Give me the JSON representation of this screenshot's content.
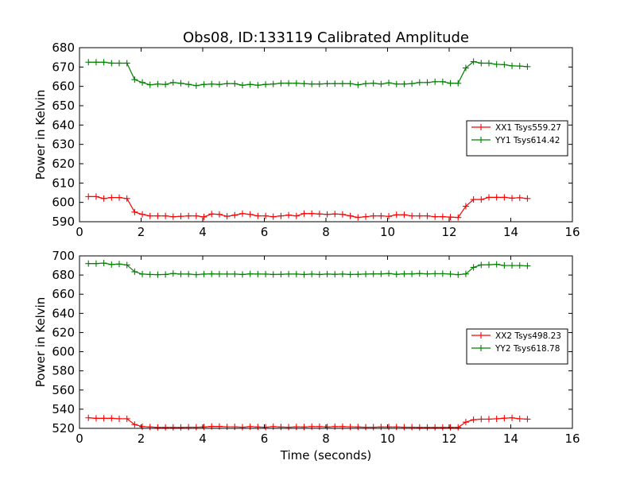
{
  "figure": {
    "title": "Obs08, ID:133119 Calibrated Amplitude",
    "xlabel": "Time (seconds)"
  },
  "chart_data": [
    {
      "type": "line",
      "title": "Obs08, ID:133119 Calibrated Amplitude",
      "xlabel": "",
      "ylabel": "Power in Kelvin",
      "xlim": [
        0,
        16
      ],
      "ylim": [
        590,
        680
      ],
      "xticks": [
        0,
        2,
        4,
        6,
        8,
        10,
        12,
        14,
        16
      ],
      "yticks": [
        590,
        600,
        610,
        620,
        630,
        640,
        650,
        660,
        670,
        680
      ],
      "grid": false,
      "legend_position": "center-right",
      "x": [
        0.29,
        0.54,
        0.79,
        1.04,
        1.29,
        1.54,
        1.79,
        2.04,
        2.29,
        2.54,
        2.79,
        3.04,
        3.29,
        3.54,
        3.79,
        4.04,
        4.29,
        4.54,
        4.79,
        5.04,
        5.29,
        5.54,
        5.79,
        6.04,
        6.29,
        6.54,
        6.79,
        7.04,
        7.29,
        7.54,
        7.79,
        8.04,
        8.29,
        8.54,
        8.79,
        9.04,
        9.29,
        9.54,
        9.79,
        10.04,
        10.29,
        10.54,
        10.79,
        11.04,
        11.29,
        11.54,
        11.79,
        12.04,
        12.29,
        12.54,
        12.79,
        13.04,
        13.29,
        13.54,
        13.79,
        14.04,
        14.29,
        14.54
      ],
      "series": [
        {
          "name": "XX1 Tsys559.27",
          "color": "#ff0000",
          "values": [
            603.0,
            603.0,
            602.0,
            602.5,
            602.5,
            602.0,
            595.0,
            593.8,
            593.0,
            593.0,
            593.0,
            592.6,
            592.8,
            593.0,
            593.0,
            592.5,
            594.0,
            593.8,
            592.8,
            593.4,
            594.2,
            593.8,
            593.0,
            593.0,
            592.6,
            593.0,
            593.4,
            593.0,
            594.2,
            594.2,
            594.0,
            593.8,
            594.0,
            593.8,
            593.0,
            592.2,
            592.6,
            593.0,
            593.0,
            592.8,
            593.6,
            593.6,
            593.0,
            593.0,
            593.0,
            592.6,
            592.6,
            592.4,
            592.2,
            598.0,
            601.5,
            601.5,
            602.6,
            602.6,
            602.6,
            602.2,
            602.4,
            602.0
          ]
        },
        {
          "name": "YY1 Tsys614.42",
          "color": "#008000",
          "values": [
            672.5,
            672.5,
            672.5,
            672.0,
            672.0,
            672.0,
            663.5,
            662.0,
            660.8,
            661.2,
            661.0,
            662.0,
            661.6,
            661.0,
            660.4,
            661.0,
            661.2,
            661.0,
            661.4,
            661.4,
            660.6,
            661.0,
            660.6,
            661.0,
            661.2,
            661.6,
            661.6,
            661.6,
            661.4,
            661.2,
            661.2,
            661.4,
            661.4,
            661.4,
            661.4,
            660.8,
            661.4,
            661.6,
            661.2,
            661.8,
            661.2,
            661.2,
            661.4,
            662.0,
            662.0,
            662.4,
            662.4,
            661.6,
            661.6,
            669.5,
            672.8,
            672.0,
            672.0,
            671.4,
            671.2,
            670.6,
            670.5,
            670.2
          ]
        }
      ]
    },
    {
      "type": "line",
      "title": "",
      "xlabel": "Time (seconds)",
      "ylabel": "Power in Kelvin",
      "xlim": [
        0,
        16
      ],
      "ylim": [
        520,
        700
      ],
      "xticks": [
        0,
        2,
        4,
        6,
        8,
        10,
        12,
        14,
        16
      ],
      "yticks": [
        520,
        540,
        560,
        580,
        600,
        620,
        640,
        660,
        680,
        700
      ],
      "grid": false,
      "legend_position": "center-right",
      "x": [
        0.29,
        0.54,
        0.79,
        1.04,
        1.29,
        1.54,
        1.79,
        2.04,
        2.29,
        2.54,
        2.79,
        3.04,
        3.29,
        3.54,
        3.79,
        4.04,
        4.29,
        4.54,
        4.79,
        5.04,
        5.29,
        5.54,
        5.79,
        6.04,
        6.29,
        6.54,
        6.79,
        7.04,
        7.29,
        7.54,
        7.79,
        8.04,
        8.29,
        8.54,
        8.79,
        9.04,
        9.29,
        9.54,
        9.79,
        10.04,
        10.29,
        10.54,
        10.79,
        11.04,
        11.29,
        11.54,
        11.79,
        12.04,
        12.29,
        12.54,
        12.79,
        13.04,
        13.29,
        13.54,
        13.79,
        14.04,
        14.29,
        14.54
      ],
      "series": [
        {
          "name": "XX2 Tsys498.23",
          "color": "#ff0000",
          "values": [
            531.0,
            530.5,
            530.5,
            530.5,
            530.0,
            530.0,
            524.0,
            521.8,
            521.4,
            521.0,
            521.0,
            521.0,
            521.0,
            521.2,
            521.2,
            521.4,
            522.0,
            522.0,
            521.6,
            521.6,
            521.2,
            521.8,
            521.4,
            521.2,
            521.8,
            521.4,
            521.2,
            521.6,
            521.4,
            521.8,
            521.8,
            521.4,
            521.8,
            521.8,
            521.6,
            521.4,
            521.2,
            521.2,
            521.4,
            521.4,
            521.4,
            521.2,
            521.2,
            521.0,
            521.0,
            521.0,
            521.0,
            521.0,
            521.0,
            526.5,
            529.0,
            529.6,
            529.6,
            530.0,
            530.6,
            531.0,
            530.0,
            529.6
          ]
        },
        {
          "name": "YY2 Tsys618.78",
          "color": "#008000",
          "values": [
            692.0,
            692.0,
            692.5,
            691.0,
            691.5,
            690.5,
            683.5,
            681.0,
            680.6,
            680.4,
            680.6,
            681.6,
            681.0,
            681.0,
            680.4,
            681.0,
            681.2,
            681.0,
            681.0,
            681.0,
            680.6,
            681.2,
            681.0,
            681.0,
            680.6,
            680.8,
            681.0,
            681.0,
            680.6,
            681.0,
            680.6,
            681.0,
            680.8,
            681.0,
            680.6,
            680.8,
            681.0,
            681.2,
            681.2,
            681.6,
            680.8,
            681.2,
            681.2,
            681.6,
            681.2,
            681.4,
            681.4,
            681.0,
            680.4,
            681.2,
            688.0,
            690.6,
            690.8,
            691.2,
            690.0,
            690.0,
            690.0,
            689.6
          ]
        }
      ]
    }
  ]
}
